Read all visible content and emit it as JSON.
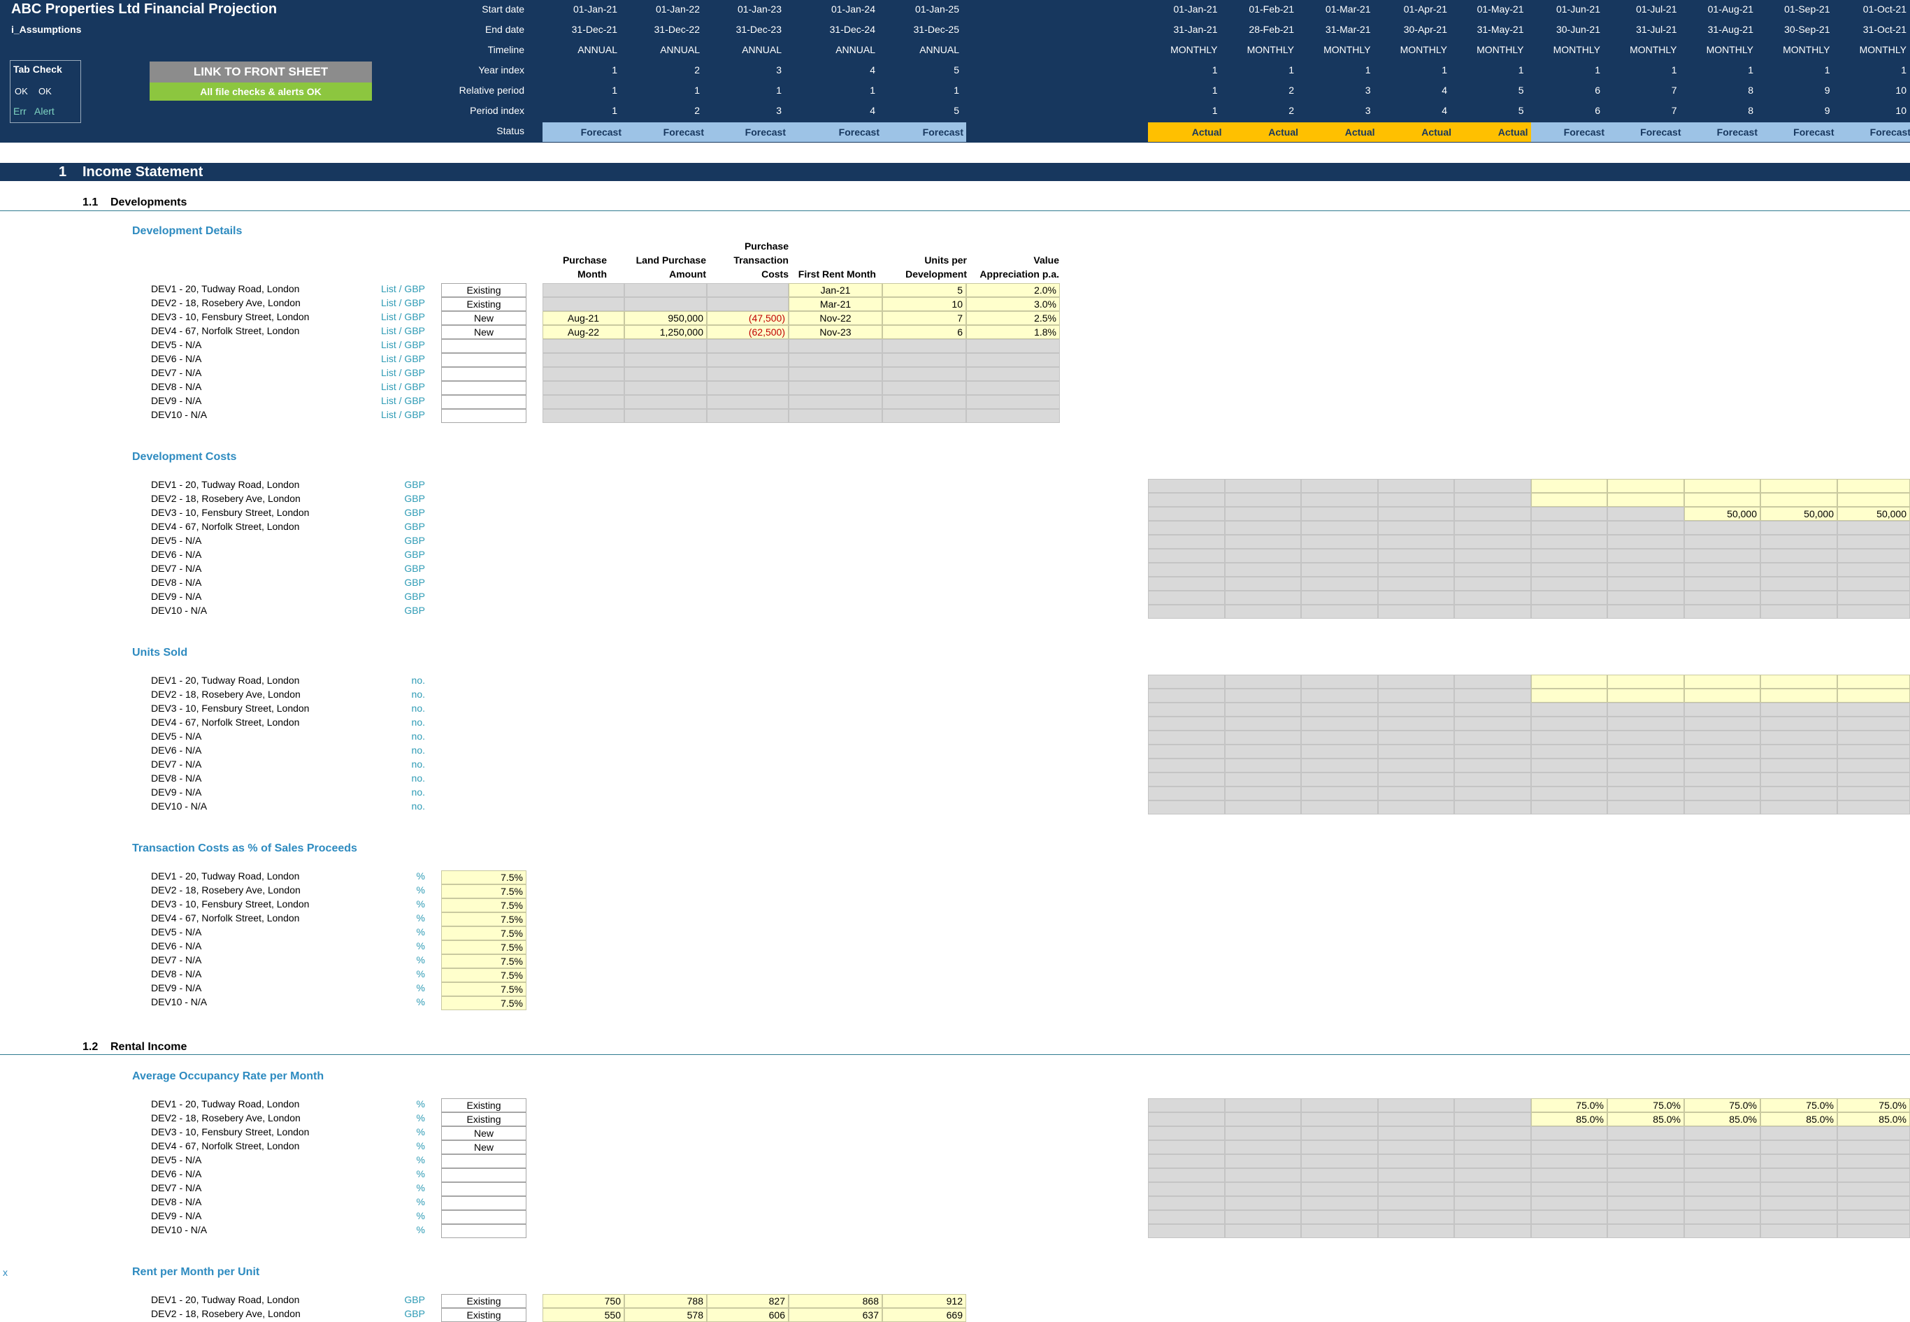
{
  "header": {
    "title": "ABC Properties Ltd Financial Projection",
    "sheet": "i_Assumptions",
    "tab_check": {
      "title": "Tab Check",
      "ok1": "OK",
      "ok2": "OK",
      "err": "Err",
      "alert": "Alert"
    },
    "link_button": "LINK TO FRONT SHEET",
    "checks_status": "All file checks & alerts OK",
    "row_labels": [
      "Start date",
      "End date",
      "Timeline",
      "Year index",
      "Relative period",
      "Period index",
      "Status"
    ],
    "annual_columns": [
      {
        "start": "01-Jan-21",
        "end": "31-Dec-21",
        "timeline": "ANNUAL",
        "year": "1",
        "rel": "1",
        "period": "1",
        "status": "Forecast"
      },
      {
        "start": "01-Jan-22",
        "end": "31-Dec-22",
        "timeline": "ANNUAL",
        "year": "2",
        "rel": "1",
        "period": "2",
        "status": "Forecast"
      },
      {
        "start": "01-Jan-23",
        "end": "31-Dec-23",
        "timeline": "ANNUAL",
        "year": "3",
        "rel": "1",
        "period": "3",
        "status": "Forecast"
      },
      {
        "start": "01-Jan-24",
        "end": "31-Dec-24",
        "timeline": "ANNUAL",
        "year": "4",
        "rel": "1",
        "period": "4",
        "status": "Forecast"
      },
      {
        "start": "01-Jan-25",
        "end": "31-Dec-25",
        "timeline": "ANNUAL",
        "year": "5",
        "rel": "1",
        "period": "5",
        "status": "Forecast"
      }
    ],
    "monthly_columns": [
      {
        "start": "01-Jan-21",
        "end": "31-Jan-21",
        "timeline": "MONTHLY",
        "year": "1",
        "rel": "1",
        "period": "1",
        "status": "Actual"
      },
      {
        "start": "01-Feb-21",
        "end": "28-Feb-21",
        "timeline": "MONTHLY",
        "year": "1",
        "rel": "2",
        "period": "2",
        "status": "Actual"
      },
      {
        "start": "01-Mar-21",
        "end": "31-Mar-21",
        "timeline": "MONTHLY",
        "year": "1",
        "rel": "3",
        "period": "3",
        "status": "Actual"
      },
      {
        "start": "01-Apr-21",
        "end": "30-Apr-21",
        "timeline": "MONTHLY",
        "year": "1",
        "rel": "4",
        "period": "4",
        "status": "Actual"
      },
      {
        "start": "01-May-21",
        "end": "31-May-21",
        "timeline": "MONTHLY",
        "year": "1",
        "rel": "5",
        "period": "5",
        "status": "Actual"
      },
      {
        "start": "01-Jun-21",
        "end": "30-Jun-21",
        "timeline": "MONTHLY",
        "year": "1",
        "rel": "6",
        "period": "6",
        "status": "Forecast"
      },
      {
        "start": "01-Jul-21",
        "end": "31-Jul-21",
        "timeline": "MONTHLY",
        "year": "1",
        "rel": "7",
        "period": "7",
        "status": "Forecast"
      },
      {
        "start": "01-Aug-21",
        "end": "31-Aug-21",
        "timeline": "MONTHLY",
        "year": "1",
        "rel": "8",
        "period": "8",
        "status": "Forecast"
      },
      {
        "start": "01-Sep-21",
        "end": "30-Sep-21",
        "timeline": "MONTHLY",
        "year": "1",
        "rel": "9",
        "period": "9",
        "status": "Forecast"
      },
      {
        "start": "01-Oct-21",
        "end": "31-Oct-21",
        "timeline": "MONTHLY",
        "year": "1",
        "rel": "10",
        "period": "10",
        "status": "Forecast"
      }
    ]
  },
  "section": {
    "number": "1",
    "title": "Income Statement"
  },
  "subsections": [
    {
      "number": "1.1",
      "title": "Developments"
    },
    {
      "number": "1.2",
      "title": "Rental Income"
    }
  ],
  "developments": [
    "DEV1 - 20, Tudway Road, London",
    "DEV2 - 18, Rosebery Ave, London",
    "DEV3 - 10, Fensbury Street, London",
    "DEV4 - 67, Norfolk Street, London",
    "DEV5 - N/A",
    "DEV6 - N/A",
    "DEV7 - N/A",
    "DEV8 - N/A",
    "DEV9 - N/A",
    "DEV10 - N/A"
  ],
  "dev_details": {
    "title": "Development Details",
    "unit": "List / GBP",
    "columns": [
      [
        "Purchase",
        "Month"
      ],
      [
        "Land Purchase",
        "Amount"
      ],
      [
        "Purchase",
        "Transaction",
        "Costs"
      ],
      [
        "First Rent Month"
      ],
      [
        "Units per",
        "Development"
      ],
      [
        "Value",
        "Appreciation p.a."
      ]
    ],
    "rows": [
      {
        "type": "Existing",
        "purchase_month": "",
        "land": "",
        "txn": "",
        "first_rent": "Jan-21",
        "units": "5",
        "appr": "2.0%"
      },
      {
        "type": "Existing",
        "purchase_month": "",
        "land": "",
        "txn": "",
        "first_rent": "Mar-21",
        "units": "10",
        "appr": "3.0%"
      },
      {
        "type": "New",
        "purchase_month": "Aug-21",
        "land": "950,000",
        "txn": "(47,500)",
        "first_rent": "Nov-22",
        "units": "7",
        "appr": "2.5%"
      },
      {
        "type": "New",
        "purchase_month": "Aug-22",
        "land": "1,250,000",
        "txn": "(62,500)",
        "first_rent": "Nov-23",
        "units": "6",
        "appr": "1.8%"
      },
      {
        "type": "",
        "purchase_month": "",
        "land": "",
        "txn": "",
        "first_rent": "",
        "units": "",
        "appr": ""
      },
      {
        "type": "",
        "purchase_month": "",
        "land": "",
        "txn": "",
        "first_rent": "",
        "units": "",
        "appr": ""
      },
      {
        "type": "",
        "purchase_month": "",
        "land": "",
        "txn": "",
        "first_rent": "",
        "units": "",
        "appr": ""
      },
      {
        "type": "",
        "purchase_month": "",
        "land": "",
        "txn": "",
        "first_rent": "",
        "units": "",
        "appr": ""
      },
      {
        "type": "",
        "purchase_month": "",
        "land": "",
        "txn": "",
        "first_rent": "",
        "units": "",
        "appr": ""
      },
      {
        "type": "",
        "purchase_month": "",
        "land": "",
        "txn": "",
        "first_rent": "",
        "units": "",
        "appr": ""
      }
    ]
  },
  "dev_costs": {
    "title": "Development Costs",
    "unit": "GBP",
    "dev3_values": [
      "",
      "",
      "",
      "",
      "",
      "",
      "",
      "50,000",
      "50,000",
      "50,000"
    ]
  },
  "units_sold": {
    "title": "Units Sold",
    "unit": "no."
  },
  "txn_costs": {
    "title": "Transaction Costs as % of Sales Proceeds",
    "unit": "%",
    "values": [
      "7.5%",
      "7.5%",
      "7.5%",
      "7.5%",
      "7.5%",
      "7.5%",
      "7.5%",
      "7.5%",
      "7.5%",
      "7.5%"
    ]
  },
  "occupancy": {
    "title": "Average Occupancy Rate per Month",
    "unit": "%",
    "types": [
      "Existing",
      "Existing",
      "New",
      "New",
      "",
      "",
      "",
      "",
      "",
      ""
    ],
    "dev1": [
      "75.0%",
      "75.0%",
      "75.0%",
      "75.0%",
      "75.0%"
    ],
    "dev2": [
      "85.0%",
      "85.0%",
      "85.0%",
      "85.0%",
      "85.0%"
    ]
  },
  "rent": {
    "title": "Rent per Month per Unit",
    "unit": "GBP",
    "marker": "x",
    "rows": [
      {
        "type": "Existing",
        "values": [
          "750",
          "788",
          "827",
          "868",
          "912"
        ]
      },
      {
        "type": "Existing",
        "values": [
          "550",
          "578",
          "606",
          "637",
          "669"
        ]
      }
    ]
  }
}
